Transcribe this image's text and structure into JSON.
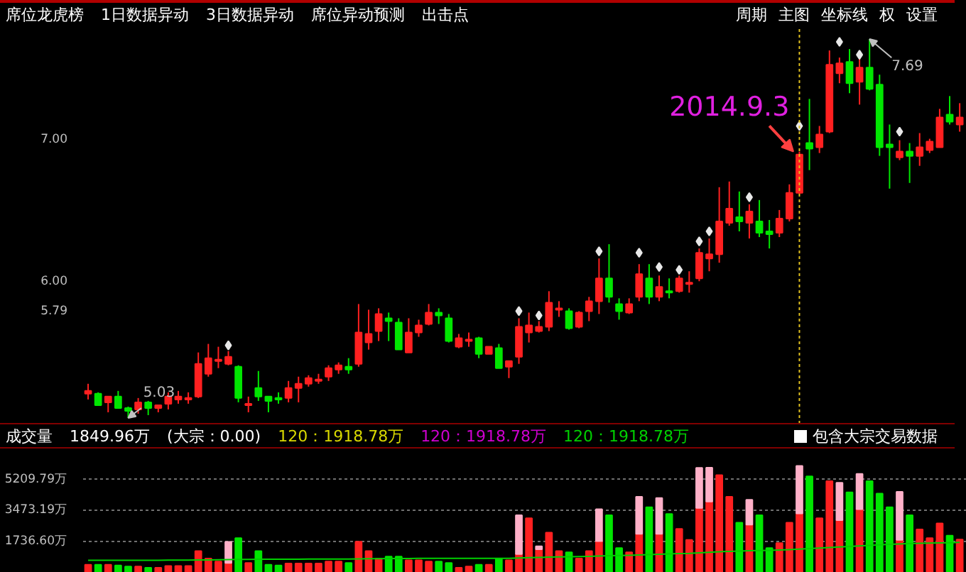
{
  "chart_data": [
    {
      "type": "candlestick",
      "categories": [
        null,
        null,
        null,
        null,
        null,
        null,
        null,
        null,
        null,
        null,
        null,
        null,
        null,
        null,
        null,
        null,
        null,
        null,
        null,
        null,
        null,
        null,
        null,
        null,
        null,
        null,
        null,
        null,
        null,
        null,
        null,
        null,
        null,
        null,
        null,
        null,
        null,
        null,
        null,
        null,
        null,
        null,
        null,
        null,
        null,
        null,
        null,
        null,
        null,
        null,
        null,
        null,
        null,
        null,
        null,
        null,
        null,
        null,
        null,
        null,
        null,
        null,
        null,
        null,
        null,
        null,
        null,
        null,
        null,
        null,
        null,
        null,
        null,
        null,
        null,
        null,
        null,
        null,
        null,
        null,
        null,
        null,
        null,
        null,
        null,
        null,
        null,
        null
      ],
      "ohlc": [
        [
          5.2,
          5.27,
          5.16,
          5.22
        ],
        [
          5.2,
          5.21,
          5.12,
          5.12
        ],
        [
          5.14,
          5.18,
          5.07,
          5.18
        ],
        [
          5.18,
          5.22,
          5.1,
          5.1
        ],
        [
          5.1,
          5.11,
          5.03,
          5.08
        ],
        [
          5.09,
          5.17,
          5.06,
          5.14
        ],
        [
          5.14,
          5.15,
          5.05,
          5.1
        ],
        [
          5.1,
          5.12,
          5.07,
          5.12
        ],
        [
          5.13,
          5.21,
          5.09,
          5.18
        ],
        [
          5.16,
          5.22,
          5.13,
          5.18
        ],
        [
          5.16,
          5.21,
          5.13,
          5.17
        ],
        [
          5.18,
          5.49,
          5.17,
          5.41
        ],
        [
          5.34,
          5.55,
          5.32,
          5.45
        ],
        [
          5.43,
          5.53,
          5.38,
          5.44
        ],
        [
          5.41,
          5.5,
          5.4,
          5.46
        ],
        [
          5.39,
          5.4,
          5.14,
          5.17
        ],
        [
          5.12,
          5.18,
          5.07,
          5.13
        ],
        [
          5.24,
          5.36,
          5.15,
          5.18
        ],
        [
          5.18,
          5.18,
          5.07,
          5.15
        ],
        [
          5.17,
          5.21,
          5.13,
          5.16
        ],
        [
          5.17,
          5.29,
          5.14,
          5.24
        ],
        [
          5.24,
          5.32,
          5.14,
          5.27
        ],
        [
          5.27,
          5.33,
          5.25,
          5.31
        ],
        [
          5.29,
          5.34,
          5.27,
          5.3
        ],
        [
          5.32,
          5.4,
          5.29,
          5.38
        ],
        [
          5.37,
          5.42,
          5.34,
          5.4
        ],
        [
          5.39,
          5.45,
          5.34,
          5.37
        ],
        [
          5.41,
          5.83,
          5.39,
          5.63
        ],
        [
          5.56,
          5.79,
          5.51,
          5.62
        ],
        [
          5.64,
          5.8,
          5.57,
          5.76
        ],
        [
          5.73,
          5.77,
          5.57,
          5.71
        ],
        [
          5.7,
          5.73,
          5.51,
          5.51
        ],
        [
          5.49,
          5.73,
          5.49,
          5.63
        ],
        [
          5.63,
          5.72,
          5.6,
          5.68
        ],
        [
          5.69,
          5.83,
          5.68,
          5.77
        ],
        [
          5.77,
          5.8,
          5.69,
          5.75
        ],
        [
          5.73,
          5.76,
          5.56,
          5.57
        ],
        [
          5.53,
          5.62,
          5.52,
          5.59
        ],
        [
          5.57,
          5.63,
          5.53,
          5.58
        ],
        [
          5.59,
          5.6,
          5.45,
          5.48
        ],
        [
          5.48,
          5.53,
          5.48,
          5.53
        ],
        [
          5.52,
          5.55,
          5.38,
          5.38
        ],
        [
          5.39,
          5.43,
          5.31,
          5.43
        ],
        [
          5.46,
          5.73,
          5.41,
          5.67
        ],
        [
          5.63,
          5.77,
          5.56,
          5.68
        ],
        [
          5.64,
          5.71,
          5.63,
          5.67
        ],
        [
          5.67,
          5.92,
          5.64,
          5.84
        ],
        [
          5.79,
          5.85,
          5.74,
          5.8
        ],
        [
          5.78,
          5.8,
          5.65,
          5.66
        ],
        [
          5.67,
          5.78,
          5.66,
          5.77
        ],
        [
          5.78,
          5.88,
          5.71,
          5.85
        ],
        [
          5.85,
          6.15,
          5.76,
          6.01
        ],
        [
          6.01,
          6.25,
          5.84,
          5.88
        ],
        [
          5.83,
          5.87,
          5.72,
          5.78
        ],
        [
          5.77,
          5.87,
          5.76,
          5.83
        ],
        [
          5.88,
          6.11,
          5.85,
          6.04
        ],
        [
          6.01,
          6.11,
          5.83,
          5.88
        ],
        [
          5.88,
          6.03,
          5.85,
          5.95
        ],
        [
          5.92,
          6.01,
          5.87,
          5.91
        ],
        [
          5.92,
          6.03,
          5.91,
          6.01
        ],
        [
          5.97,
          6.06,
          5.91,
          5.98
        ],
        [
          6.01,
          6.22,
          5.99,
          6.19
        ],
        [
          6.15,
          6.29,
          6.06,
          6.18
        ],
        [
          6.18,
          6.65,
          6.12,
          6.41
        ],
        [
          6.4,
          6.69,
          6.38,
          6.5
        ],
        [
          6.44,
          6.62,
          6.34,
          6.41
        ],
        [
          6.4,
          6.53,
          6.29,
          6.48
        ],
        [
          6.41,
          6.56,
          6.3,
          6.33
        ],
        [
          6.34,
          6.42,
          6.22,
          6.32
        ],
        [
          6.33,
          6.49,
          6.3,
          6.43
        ],
        [
          6.43,
          6.67,
          6.41,
          6.61
        ],
        [
          6.61,
          6.9,
          6.6,
          6.88
        ],
        [
          6.96,
          7.27,
          6.77,
          6.92
        ],
        [
          6.93,
          7.08,
          6.89,
          7.02
        ],
        [
          7.04,
          7.61,
          7.03,
          7.51
        ],
        [
          7.45,
          7.56,
          7.38,
          7.52
        ],
        [
          7.53,
          7.62,
          7.31,
          7.38
        ],
        [
          7.39,
          7.56,
          7.23,
          7.49
        ],
        [
          7.49,
          7.69,
          7.33,
          7.34
        ],
        [
          7.37,
          7.44,
          6.87,
          6.93
        ],
        [
          6.95,
          7.09,
          6.64,
          6.93
        ],
        [
          6.86,
          6.98,
          6.84,
          6.9
        ],
        [
          6.9,
          6.96,
          6.68,
          6.87
        ],
        [
          6.87,
          7.03,
          6.8,
          6.93
        ],
        [
          6.91,
          6.99,
          6.89,
          6.97
        ],
        [
          6.93,
          7.2,
          6.93,
          7.14
        ],
        [
          7.16,
          7.29,
          7.09,
          7.11
        ],
        [
          7.09,
          7.24,
          7.04,
          7.14
        ]
      ],
      "colors": [
        "#ff2020",
        "#00e600",
        "#ff2020",
        "#00e600",
        "#00e600",
        "#ff2020",
        "#00e600",
        "#ff2020",
        "#ff2020",
        "#ff2020",
        "#ff2020",
        "#ff2020",
        "#ff2020",
        "#ff2020",
        "#ff2020",
        "#00e600",
        "#ff2020",
        "#00e600",
        "#00e600",
        "#00e600",
        "#ff2020",
        "#ff2020",
        "#ff2020",
        "#ff2020",
        "#ff2020",
        "#ff2020",
        "#00e600",
        "#ff2020",
        "#ff2020",
        "#ff2020",
        "#00e600",
        "#00e600",
        "#ff2020",
        "#ff2020",
        "#ff2020",
        "#00e600",
        "#00e600",
        "#ff2020",
        "#ff2020",
        "#00e600",
        "#ff2020",
        "#00e600",
        "#ff2020",
        "#ff2020",
        "#ff2020",
        "#ff2020",
        "#ff2020",
        "#ff2020",
        "#00e600",
        "#ff2020",
        "#ff2020",
        "#ff2020",
        "#00e600",
        "#00e600",
        "#ff2020",
        "#ff2020",
        "#00e600",
        "#ff2020",
        "#00e600",
        "#ff2020",
        "#ff2020",
        "#ff2020",
        "#ff2020",
        "#ff2020",
        "#ff2020",
        "#00e600",
        "#ff2020",
        "#00e600",
        "#00e600",
        "#ff2020",
        "#ff2020",
        "#ff2020",
        "#00e600",
        "#ff2020",
        "#ff2020",
        "#ff2020",
        "#00e600",
        "#ff2020",
        "#00e600",
        "#00e600",
        "#00e600",
        "#ff2020",
        "#00e600",
        "#ff2020",
        "#ff2020",
        "#ff2020",
        "#00e600",
        "#ff2020"
      ],
      "series": [
        {
          "type": "scatter",
          "color": "#e8e8e8",
          "marker": "diamond",
          "values": [
            null,
            null,
            null,
            null,
            null,
            null,
            null,
            null,
            null,
            null,
            null,
            null,
            null,
            null,
            5.54,
            null,
            null,
            null,
            null,
            null,
            null,
            null,
            null,
            null,
            null,
            null,
            null,
            null,
            null,
            null,
            null,
            null,
            null,
            null,
            null,
            null,
            null,
            null,
            null,
            null,
            null,
            null,
            null,
            5.78,
            null,
            5.75,
            null,
            null,
            null,
            null,
            null,
            6.2,
            null,
            null,
            null,
            6.19,
            null,
            6.09,
            null,
            6.07,
            null,
            6.27,
            6.34,
            null,
            null,
            null,
            6.58,
            null,
            null,
            null,
            null,
            7.08,
            null,
            null,
            null,
            7.67,
            null,
            7.58,
            null,
            null,
            null,
            7.04,
            null,
            null,
            null,
            null,
            null,
            null
          ]
        }
      ],
      "ylim": [
        4.99,
        7.76
      ],
      "yticks": [
        {
          "value": 5.79,
          "label": "5.79"
        },
        {
          "value": 6,
          "label": "6.00"
        },
        {
          "value": 7,
          "label": "7.00"
        }
      ],
      "tick_labels": "y",
      "grid": false,
      "annotations": [
        "席位龙虎榜",
        "1日数据异动",
        "3日数据异动",
        "席位异动预测",
        "出击点",
        "周期",
        "主图",
        "坐标线",
        "权",
        "设置",
        {
          "text": "5.03",
          "y": 5.03
        },
        "7.69",
        "2014.9.3"
      ]
    },
    {
      "type": "bar",
      "stacked": true,
      "title": "成交量",
      "categories": [
        null,
        null,
        null,
        null,
        null,
        null,
        null,
        null,
        null,
        null,
        null,
        null,
        null,
        null,
        null,
        null,
        null,
        null,
        null,
        null,
        null,
        null,
        null,
        null,
        null,
        null,
        null,
        null,
        null,
        null,
        null,
        null,
        null,
        null,
        null,
        null,
        null,
        null,
        null,
        null,
        null,
        null,
        null,
        null,
        null,
        null,
        null,
        null,
        null,
        null,
        null,
        null,
        null,
        null,
        null,
        null,
        null,
        null,
        null,
        null,
        null,
        null,
        null,
        null,
        null,
        null,
        null,
        null,
        null,
        null,
        null,
        null,
        null,
        null,
        null,
        null,
        null,
        null,
        null,
        null,
        null,
        null,
        null,
        null,
        null,
        null,
        null,
        null
      ],
      "series": [
        {
          "colors": [
            "#ff2020",
            "#00e600",
            "#ff2020",
            "#00e600",
            "#00e600",
            "#ff2020",
            "#00e600",
            "#ff2020",
            "#ff2020",
            "#ff2020",
            "#ff2020",
            "#ff2020",
            "#ff2020",
            "#ff2020",
            "#ff2020",
            "#00e600",
            "#ff2020",
            "#00e600",
            "#00e600",
            "#00e600",
            "#ff2020",
            "#ff2020",
            "#ff2020",
            "#ff2020",
            "#ff2020",
            "#ff2020",
            "#00e600",
            "#ff2020",
            "#ff2020",
            "#ff2020",
            "#00e600",
            "#00e600",
            "#ff2020",
            "#ff2020",
            "#ff2020",
            "#00e600",
            "#00e600",
            "#ff2020",
            "#ff2020",
            "#00e600",
            "#ff2020",
            "#00e600",
            "#ff2020",
            "#ff2020",
            "#ff2020",
            "#ff2020",
            "#ff2020",
            "#ff2020",
            "#00e600",
            "#ff2020",
            "#ff2020",
            "#ff2020",
            "#00e600",
            "#00e600",
            "#ff2020",
            "#ff2020",
            "#00e600",
            "#ff2020",
            "#00e600",
            "#ff2020",
            "#ff2020",
            "#ff2020",
            "#ff2020",
            "#ff2020",
            "#ff2020",
            "#00e600",
            "#ff2020",
            "#00e600",
            "#00e600",
            "#ff2020",
            "#ff2020",
            "#ff2020",
            "#00e600",
            "#ff2020",
            "#ff2020",
            "#ff2020",
            "#00e600",
            "#ff2020",
            "#00e600",
            "#00e600",
            "#00e600",
            "#ff2020",
            "#00e600",
            "#ff2020",
            "#ff2020",
            "#ff2020",
            "#00e600",
            "#ff2020"
          ],
          "values": [
            450,
            450,
            450,
            410,
            350,
            350,
            280,
            280,
            380,
            380,
            380,
            1210,
            790,
            620,
            550,
            1930,
            550,
            1210,
            450,
            410,
            520,
            520,
            520,
            520,
            620,
            620,
            550,
            1730,
            1210,
            790,
            900,
            900,
            690,
            690,
            620,
            620,
            550,
            280,
            350,
            450,
            450,
            790,
            690,
            1040,
            3040,
            1310,
            2240,
            1210,
            1140,
            790,
            1210,
            1760,
            3210,
            1380,
            1140,
            2170,
            3660,
            2170,
            3280,
            2450,
            1830,
            3620,
            3970,
            5450,
            4240,
            2800,
            2690,
            3210,
            1380,
            1660,
            2800,
            3310,
            5380,
            3040,
            5110,
            2930,
            4490,
            3550,
            5110,
            4420,
            3660,
            1830,
            3210,
            2420,
            1930,
            2760,
            2070,
            1850
          ]
        },
        {
          "color": "#ffb0c8",
          "values": [
            null,
            null,
            null,
            null,
            null,
            null,
            null,
            null,
            null,
            null,
            null,
            null,
            null,
            null,
            1170,
            null,
            null,
            null,
            null,
            null,
            null,
            null,
            null,
            null,
            null,
            null,
            null,
            null,
            null,
            null,
            null,
            null,
            null,
            null,
            null,
            null,
            null,
            null,
            null,
            null,
            null,
            null,
            null,
            2170,
            null,
            170,
            null,
            null,
            null,
            null,
            null,
            1790,
            null,
            null,
            null,
            2070,
            null,
            2000,
            null,
            null,
            null,
            2240,
            1900,
            null,
            null,
            null,
            1380,
            null,
            null,
            null,
            null,
            2660,
            null,
            null,
            null,
            2100,
            null,
            1970,
            null,
            null,
            null,
            2690,
            null,
            null,
            null,
            null,
            null,
            null
          ]
        },
        {
          "type": "line",
          "name": "120：1918.78万",
          "color": "#d8d800",
          "values": [
            null,
            null,
            null,
            null,
            null,
            null,
            null,
            null,
            null,
            null,
            null,
            null,
            null,
            null,
            null,
            null,
            null,
            null,
            null,
            null,
            null,
            null,
            null,
            null,
            null,
            null,
            null,
            null,
            null,
            null,
            null,
            null,
            null,
            null,
            null,
            null,
            null,
            null,
            null,
            null,
            null,
            null,
            null,
            null,
            null,
            null,
            null,
            null,
            null,
            null,
            null,
            null,
            null,
            null,
            null,
            null,
            null,
            null,
            null,
            null,
            null,
            null,
            null,
            null,
            null,
            null,
            null,
            null,
            null,
            null,
            null,
            null,
            null,
            null,
            null,
            null,
            null,
            null,
            null,
            null,
            null,
            null,
            null,
            null,
            null,
            null,
            null,
            null
          ]
        },
        {
          "type": "line",
          "name": "120：1918.78万",
          "color": "#d000d0",
          "values": [
            null,
            null,
            null,
            null,
            null,
            null,
            null,
            null,
            null,
            null,
            null,
            null,
            null,
            null,
            null,
            null,
            null,
            null,
            null,
            null,
            null,
            null,
            null,
            null,
            null,
            null,
            null,
            null,
            null,
            null,
            null,
            null,
            null,
            null,
            null,
            null,
            null,
            null,
            null,
            null,
            null,
            null,
            null,
            null,
            null,
            null,
            null,
            null,
            null,
            null,
            null,
            null,
            null,
            null,
            null,
            null,
            null,
            null,
            null,
            null,
            null,
            null,
            null,
            null,
            null,
            null,
            null,
            null,
            null,
            null,
            null,
            null,
            null,
            null,
            null,
            null,
            null,
            null,
            null,
            null,
            null,
            null,
            null,
            null,
            null,
            null,
            null,
            null
          ]
        },
        {
          "type": "line",
          "name": "120：1918.78万",
          "color": "#00d000",
          "values": [
            690,
            690,
            690,
            690,
            690,
            690,
            690,
            690,
            700,
            700,
            700,
            710,
            710,
            720,
            730,
            740,
            740,
            750,
            750,
            750,
            750,
            750,
            760,
            760,
            760,
            760,
            760,
            770,
            780,
            780,
            790,
            790,
            790,
            800,
            800,
            800,
            800,
            800,
            800,
            800,
            800,
            800,
            800,
            820,
            840,
            850,
            870,
            880,
            890,
            900,
            910,
            930,
            950,
            960,
            970,
            990,
            1010,
            1030,
            1050,
            1070,
            1080,
            1110,
            1140,
            1170,
            1190,
            1210,
            1230,
            1240,
            1250,
            1270,
            1290,
            1320,
            1350,
            1380,
            1410,
            1440,
            1470,
            1500,
            1530,
            1560,
            1590,
            1610,
            1630,
            1650,
            1660,
            1670,
            1680,
            1690
          ]
        }
      ],
      "ylim": [
        0,
        6740
      ],
      "yticks": [
        {
          "value": 1736.6,
          "label": "1736.60万"
        },
        {
          "value": 3473.19,
          "label": "3473.19万"
        },
        {
          "value": 5209.79,
          "label": "5209.79万"
        }
      ],
      "tick_labels": "y",
      "grid": "y",
      "annotations": [
        "1849.96万",
        "(大宗：0.00)",
        "包含大宗交易数据"
      ]
    }
  ]
}
